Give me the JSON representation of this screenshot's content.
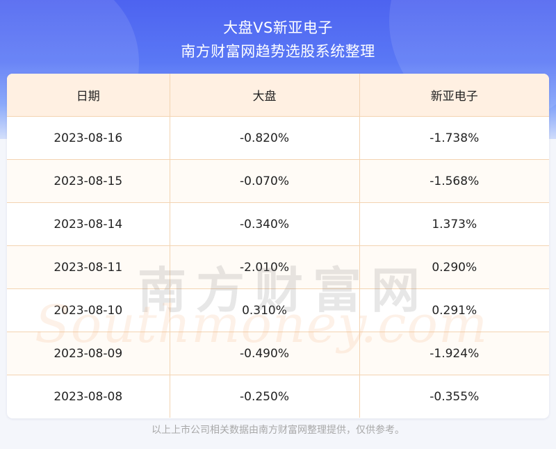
{
  "header": {
    "title": "大盘VS新亚电子",
    "subtitle": "南方财富网趋势选股系统整理"
  },
  "table": {
    "columns": [
      "日期",
      "大盘",
      "新亚电子"
    ],
    "rows": [
      [
        "2023-08-16",
        "-0.820%",
        "-1.738%"
      ],
      [
        "2023-08-15",
        "-0.070%",
        "-1.568%"
      ],
      [
        "2023-08-14",
        "-0.340%",
        "1.373%"
      ],
      [
        "2023-08-11",
        "-2.010%",
        "0.290%"
      ],
      [
        "2023-08-10",
        "0.310%",
        "0.291%"
      ],
      [
        "2023-08-09",
        "-0.490%",
        "-1.924%"
      ],
      [
        "2023-08-08",
        "-0.250%",
        "-0.355%"
      ]
    ]
  },
  "watermark": {
    "cn": "南方财富网",
    "en": "Southmoney.com"
  },
  "footer": {
    "note": "以上上市公司相关数据由南方财富网整理提供，仅供参考。"
  },
  "colors": {
    "banner_top": "#4d63f0",
    "header_row_bg": "#fff0e2",
    "grid_line": "#f3d3b1"
  }
}
